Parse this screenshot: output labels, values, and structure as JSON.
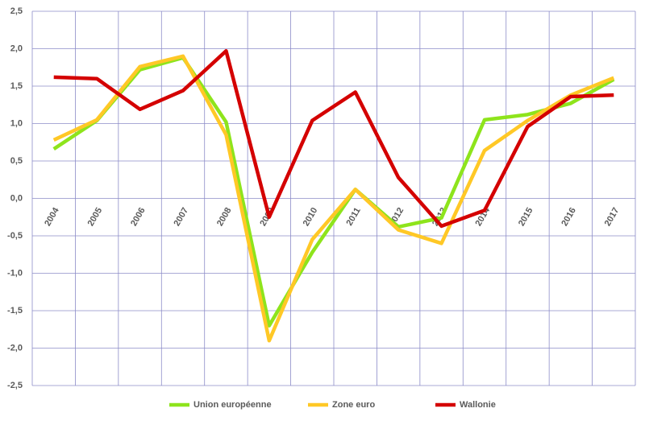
{
  "chart_data": {
    "type": "line",
    "categories": [
      "2004",
      "2005",
      "2006",
      "2007",
      "2008",
      "2009",
      "2010",
      "2011",
      "2012",
      "2013",
      "2014",
      "2015",
      "2016",
      "2017"
    ],
    "series": [
      {
        "name": "Union européenne",
        "color": "#8ee41c",
        "values": [
          0.66,
          1.04,
          1.72,
          1.88,
          1.02,
          -1.7,
          -0.72,
          0.12,
          -0.38,
          -0.26,
          1.05,
          1.12,
          1.27,
          1.59
        ]
      },
      {
        "name": "Zone euro",
        "color": "#ffc826",
        "values": [
          0.78,
          1.05,
          1.76,
          1.9,
          0.85,
          -1.9,
          -0.55,
          0.12,
          -0.42,
          -0.6,
          0.64,
          1.04,
          1.38,
          1.61
        ]
      },
      {
        "name": "Wallonie",
        "color": "#d40000",
        "values": [
          1.62,
          1.6,
          1.19,
          1.44,
          1.97,
          -0.25,
          1.04,
          1.42,
          0.28,
          -0.37,
          -0.16,
          0.96,
          1.36,
          1.38
        ]
      }
    ],
    "ylim": [
      -2.5,
      2.5
    ],
    "yticks": [
      {
        "value": -2.5,
        "label": "-2,5"
      },
      {
        "value": -2,
        "label": "-2,0"
      },
      {
        "value": -1.5,
        "label": "-1,5"
      },
      {
        "value": -1,
        "label": "-1,0"
      },
      {
        "value": -0.5,
        "label": "-0,5"
      },
      {
        "value": 0,
        "label": "0,0"
      },
      {
        "value": 0.5,
        "label": "0,5"
      },
      {
        "value": 1,
        "label": "1,0"
      },
      {
        "value": 1.5,
        "label": "1,5"
      },
      {
        "value": 2,
        "label": "2,0"
      },
      {
        "value": 2.5,
        "label": "2,5"
      }
    ],
    "grid": true,
    "legend": "bottom"
  }
}
